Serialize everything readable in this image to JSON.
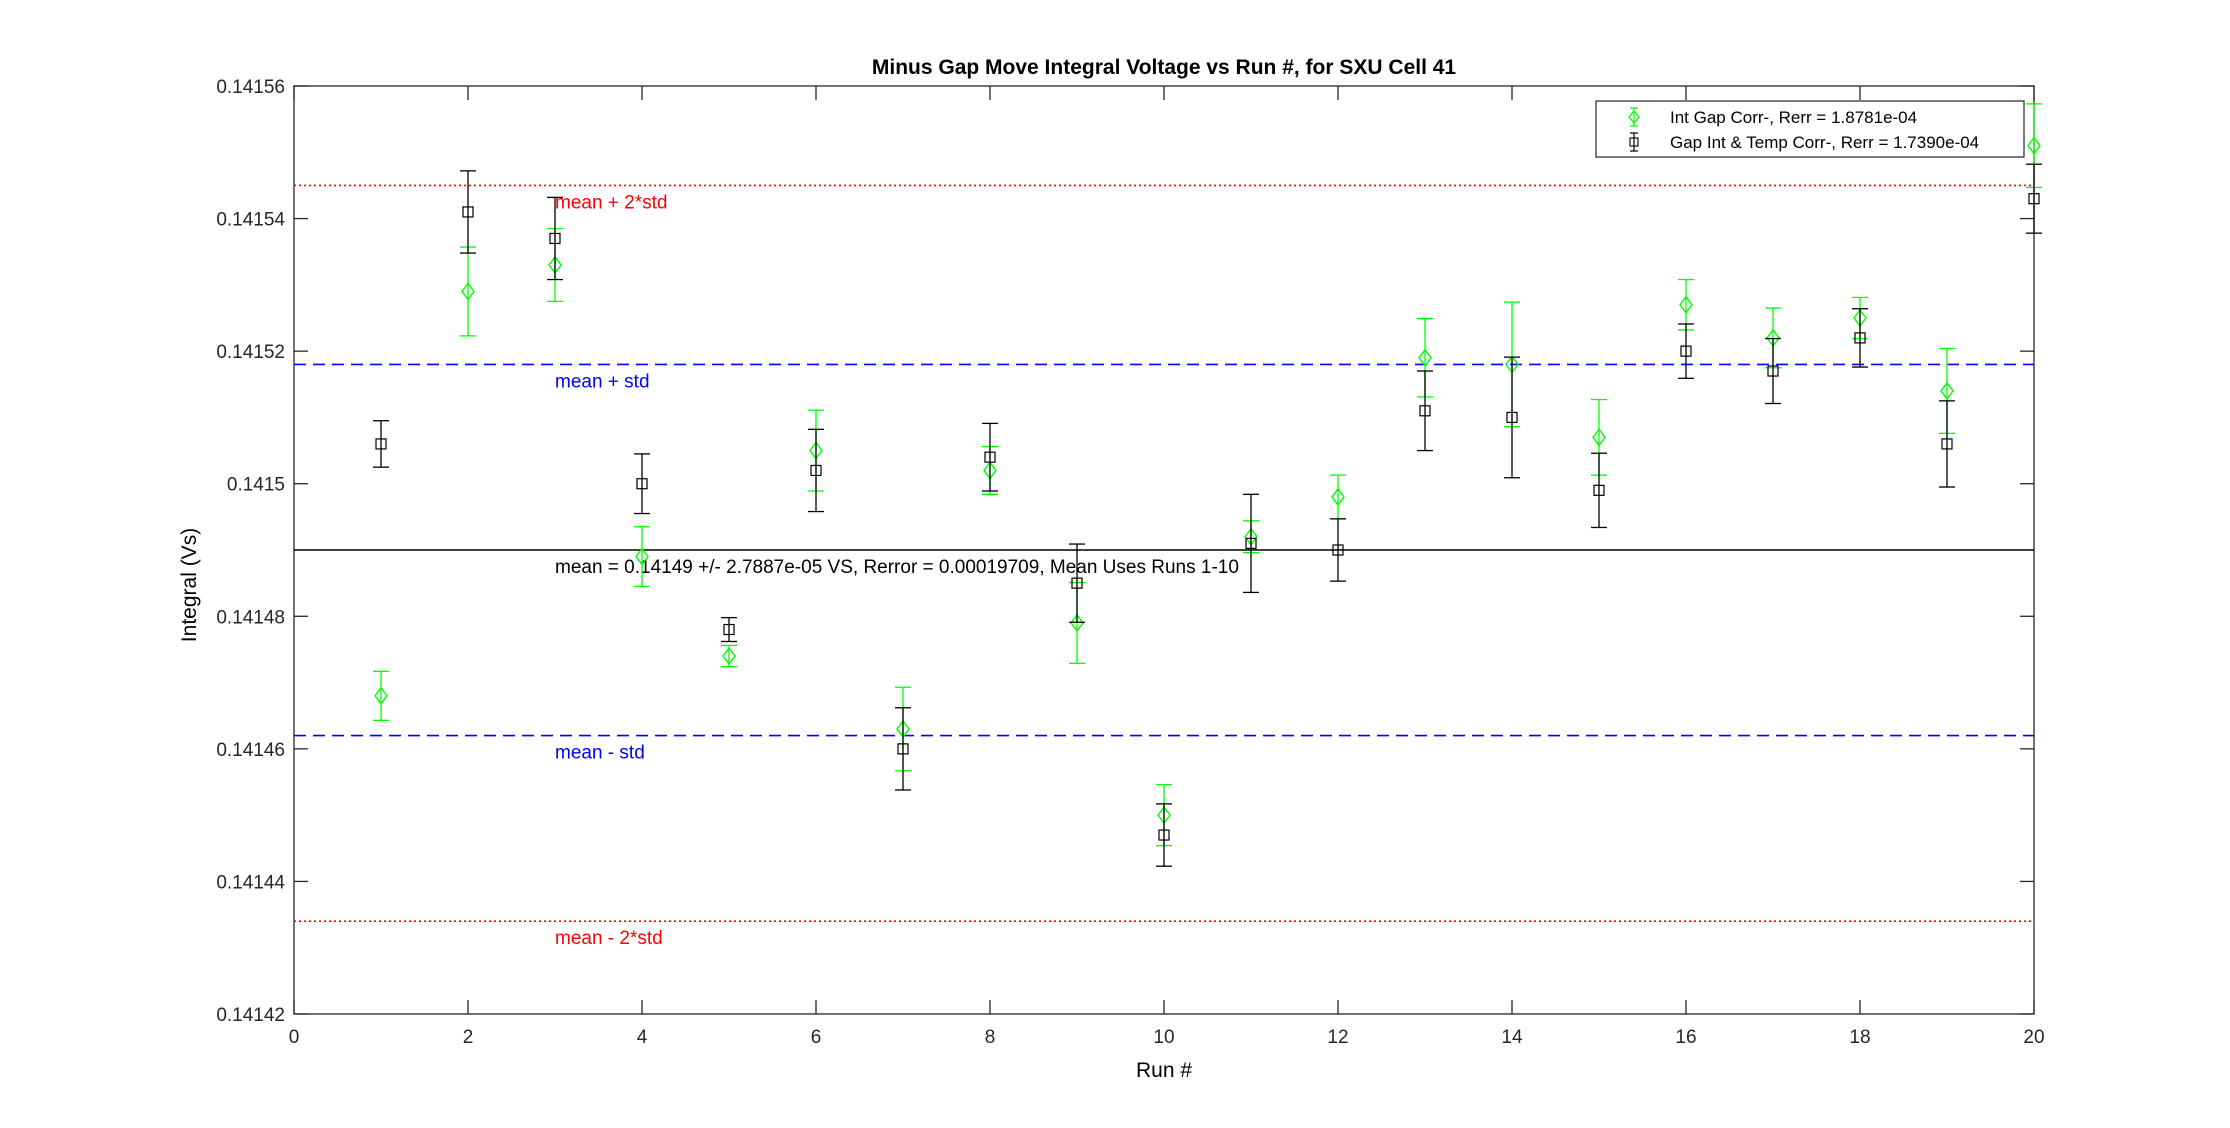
{
  "chart_data": {
    "type": "scatter",
    "title": "Minus Gap Move Integral Voltage vs Run #, for SXU Cell 41",
    "xlabel": "Run #",
    "ylabel": "Integral (Vs)",
    "xlim": [
      0,
      20
    ],
    "ylim": [
      0.14142,
      0.14156
    ],
    "xticks": [
      0,
      2,
      4,
      6,
      8,
      10,
      12,
      14,
      16,
      18,
      20
    ],
    "xtick_labels": [
      "0",
      "2",
      "4",
      "6",
      "8",
      "10",
      "12",
      "14",
      "16",
      "18",
      "20"
    ],
    "yticks": [
      0.14142,
      0.14144,
      0.14146,
      0.14148,
      0.1415,
      0.14152,
      0.14154,
      0.14156
    ],
    "ytick_labels": [
      "0.14142",
      "0.14144",
      "0.14146",
      "0.14148",
      "0.1415",
      "0.14152",
      "0.14154",
      "0.14156"
    ],
    "grid": false,
    "legend_position": "top-right",
    "series": [
      {
        "name": "Int Gap Corr-, Rerr = 1.8781e-04",
        "marker": "diamond",
        "color": "#00ff00",
        "x": [
          1,
          2,
          3,
          4,
          5,
          6,
          7,
          8,
          9,
          10,
          11,
          12,
          13,
          14,
          15,
          16,
          17,
          18,
          19,
          20
        ],
        "y": [
          0.141468,
          0.141529,
          0.141533,
          0.141489,
          0.141474,
          0.141505,
          0.141463,
          0.141502,
          0.141479,
          0.14145,
          0.141492,
          0.141498,
          0.141519,
          0.141518,
          0.141507,
          0.141527,
          0.141522,
          0.141525,
          0.141514,
          0.141551
        ],
        "err": [
          3.7e-06,
          6.7e-06,
          5.5e-06,
          4.5e-06,
          1.6e-06,
          6.1e-06,
          6.3e-06,
          3.6e-06,
          6.1e-06,
          4.6e-06,
          2.4e-06,
          3.3e-06,
          5.9e-06,
          9.4e-06,
          5.7e-06,
          3.8e-06,
          4.5e-06,
          3.1e-06,
          6.4e-06,
          6.3e-06
        ]
      },
      {
        "name": "Gap Int & Temp Corr-, Rerr = 1.7390e-04",
        "marker": "square",
        "color": "#000000",
        "x": [
          1,
          2,
          3,
          4,
          5,
          6,
          7,
          8,
          9,
          10,
          11,
          12,
          13,
          14,
          15,
          16,
          17,
          18,
          19,
          20
        ],
        "y": [
          0.141506,
          0.141541,
          0.141537,
          0.1415,
          0.141478,
          0.141502,
          0.14146,
          0.141504,
          0.141485,
          0.141447,
          0.141491,
          0.14149,
          0.141511,
          0.14151,
          0.141499,
          0.14152,
          0.141517,
          0.141522,
          0.141506,
          0.141543
        ],
        "err": [
          3.5e-06,
          6.2e-06,
          6.2e-06,
          4.5e-06,
          1.8e-06,
          6.2e-06,
          6.2e-06,
          5.1e-06,
          5.9e-06,
          4.7e-06,
          7.4e-06,
          4.7e-06,
          6e-06,
          9.1e-06,
          5.6e-06,
          4.1e-06,
          4.9e-06,
          4.4e-06,
          6.5e-06,
          5.2e-06
        ]
      }
    ],
    "reference_lines": [
      {
        "label": "mean + 2*std",
        "y": 0.141545,
        "color": "#ff0000",
        "style": "dotted"
      },
      {
        "label": "mean + std",
        "y": 0.141518,
        "color": "#0000ff",
        "style": "dashed"
      },
      {
        "label": "mean = 0.14149 +/- 2.7887e-05 VS, Rerror = 0.00019709, Mean Uses Runs 1-10",
        "y": 0.14149,
        "color": "#000000",
        "style": "solid"
      },
      {
        "label": "mean - std",
        "y": 0.141462,
        "color": "#0000ff",
        "style": "dashed"
      },
      {
        "label": "mean - 2*std",
        "y": 0.141434,
        "color": "#ff0000",
        "style": "dotted"
      }
    ],
    "annotation_x": 3
  }
}
